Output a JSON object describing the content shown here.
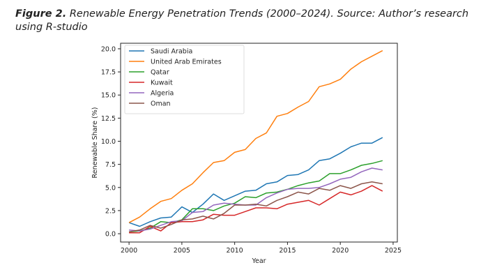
{
  "figure": {
    "label": "Figure 2.",
    "caption": " Renewable Energy Penetration Trends (2000–2024). Source: Author’s research using R-studio"
  },
  "chart_data": {
    "type": "line",
    "title": "",
    "xlabel": "Year",
    "ylabel": "Renewable Share (%)",
    "xlim": [
      1999.2,
      2025.4
    ],
    "ylim": [
      -0.9,
      20.6
    ],
    "xticks": [
      2000,
      2005,
      2010,
      2015,
      2020,
      2025
    ],
    "yticks": [
      0.0,
      2.5,
      5.0,
      7.5,
      10.0,
      12.5,
      15.0,
      17.5,
      20.0
    ],
    "ytick_labels": [
      "0.0",
      "2.5",
      "5.0",
      "7.5",
      "10.0",
      "12.5",
      "15.0",
      "17.5",
      "20.0"
    ],
    "grid": false,
    "legend_position": "top-left",
    "x": [
      2000,
      2001,
      2002,
      2003,
      2004,
      2005,
      2006,
      2007,
      2008,
      2009,
      2010,
      2011,
      2012,
      2013,
      2014,
      2015,
      2016,
      2017,
      2018,
      2019,
      2020,
      2021,
      2022,
      2023,
      2024
    ],
    "series": [
      {
        "name": "Saudi Arabia",
        "color": "#1f77b4",
        "values": [
          1.2,
          0.8,
          1.3,
          1.7,
          1.8,
          2.9,
          2.3,
          3.2,
          4.3,
          3.6,
          4.1,
          4.6,
          4.7,
          5.4,
          5.6,
          6.3,
          6.4,
          6.9,
          7.9,
          8.1,
          8.7,
          9.4,
          9.8,
          9.8,
          10.4
        ]
      },
      {
        "name": "United Arab Emirates",
        "color": "#ff7f0e",
        "values": [
          1.2,
          1.8,
          2.7,
          3.5,
          3.8,
          4.7,
          5.4,
          6.6,
          7.7,
          7.9,
          8.8,
          9.1,
          10.3,
          10.9,
          12.7,
          13.0,
          13.7,
          14.3,
          15.9,
          16.2,
          16.7,
          17.8,
          18.6,
          19.2,
          19.8
        ]
      },
      {
        "name": "Qatar",
        "color": "#2ca02c",
        "values": [
          0.2,
          0.3,
          0.6,
          1.3,
          1.2,
          1.5,
          2.7,
          2.7,
          2.5,
          3.0,
          3.3,
          4.0,
          3.9,
          4.4,
          4.5,
          4.8,
          5.2,
          5.5,
          5.7,
          6.5,
          6.5,
          6.9,
          7.4,
          7.6,
          7.9
        ]
      },
      {
        "name": "Kuwait",
        "color": "#d62728",
        "values": [
          0.1,
          0.1,
          0.8,
          0.3,
          1.2,
          1.3,
          1.3,
          1.5,
          2.1,
          2.0,
          2.0,
          2.4,
          2.8,
          2.8,
          2.7,
          3.2,
          3.4,
          3.6,
          3.1,
          3.8,
          4.5,
          4.2,
          4.6,
          5.2,
          4.6
        ]
      },
      {
        "name": "Algeria",
        "color": "#9467bd",
        "values": [
          0.4,
          0.3,
          0.5,
          0.9,
          1.3,
          1.4,
          2.3,
          2.4,
          3.1,
          3.3,
          3.2,
          3.1,
          3.1,
          3.9,
          4.4,
          4.8,
          4.9,
          4.9,
          5.0,
          5.4,
          5.9,
          6.1,
          6.7,
          7.1,
          6.9
        ]
      },
      {
        "name": "Oman",
        "color": "#8c564b",
        "values": [
          0.2,
          0.4,
          0.9,
          0.6,
          1.0,
          1.5,
          1.6,
          1.9,
          1.6,
          2.2,
          3.1,
          3.1,
          3.2,
          3.0,
          3.6,
          4.0,
          4.5,
          4.3,
          4.9,
          4.7,
          5.2,
          4.9,
          5.4,
          5.6,
          5.4
        ]
      }
    ]
  }
}
